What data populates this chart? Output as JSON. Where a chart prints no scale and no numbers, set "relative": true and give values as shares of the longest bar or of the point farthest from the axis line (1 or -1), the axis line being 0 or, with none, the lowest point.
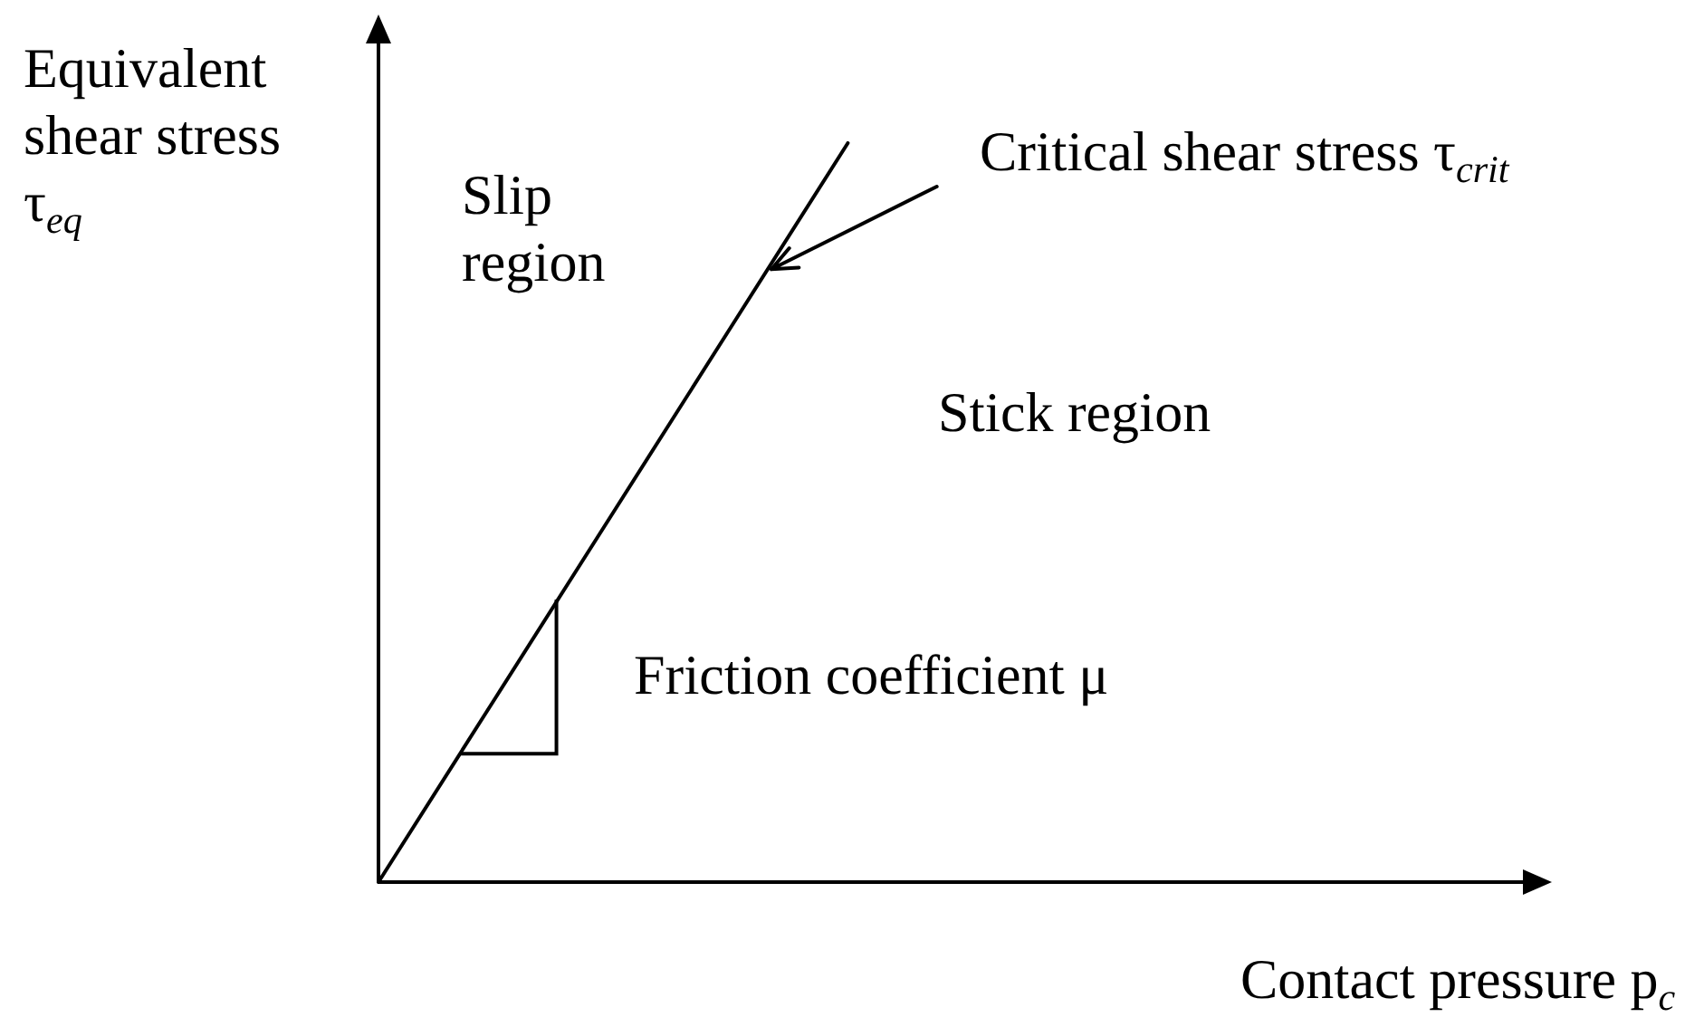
{
  "chart_data": {
    "type": "line",
    "relative": true,
    "categories": [
      null,
      null,
      null,
      null,
      null,
      null,
      null,
      null,
      null,
      null,
      null
    ],
    "series": [
      {
        "color": "#000000",
        "values": [
          0,
          0.25,
          0.5,
          0.75,
          1,
          null,
          null,
          null,
          null,
          null,
          null
        ]
      }
    ],
    "xlabel": "Contact pressure p$_{c}$",
    "ylabel": "Equivalent shear stress τ$_{eq}$",
    "annotations": [
      "Slip region",
      "Stick region",
      "Friction coefficient μ",
      "Critical shear stress τ$_{crit}$"
    ],
    "marker": "none",
    "legend": false,
    "grid": false
  }
}
